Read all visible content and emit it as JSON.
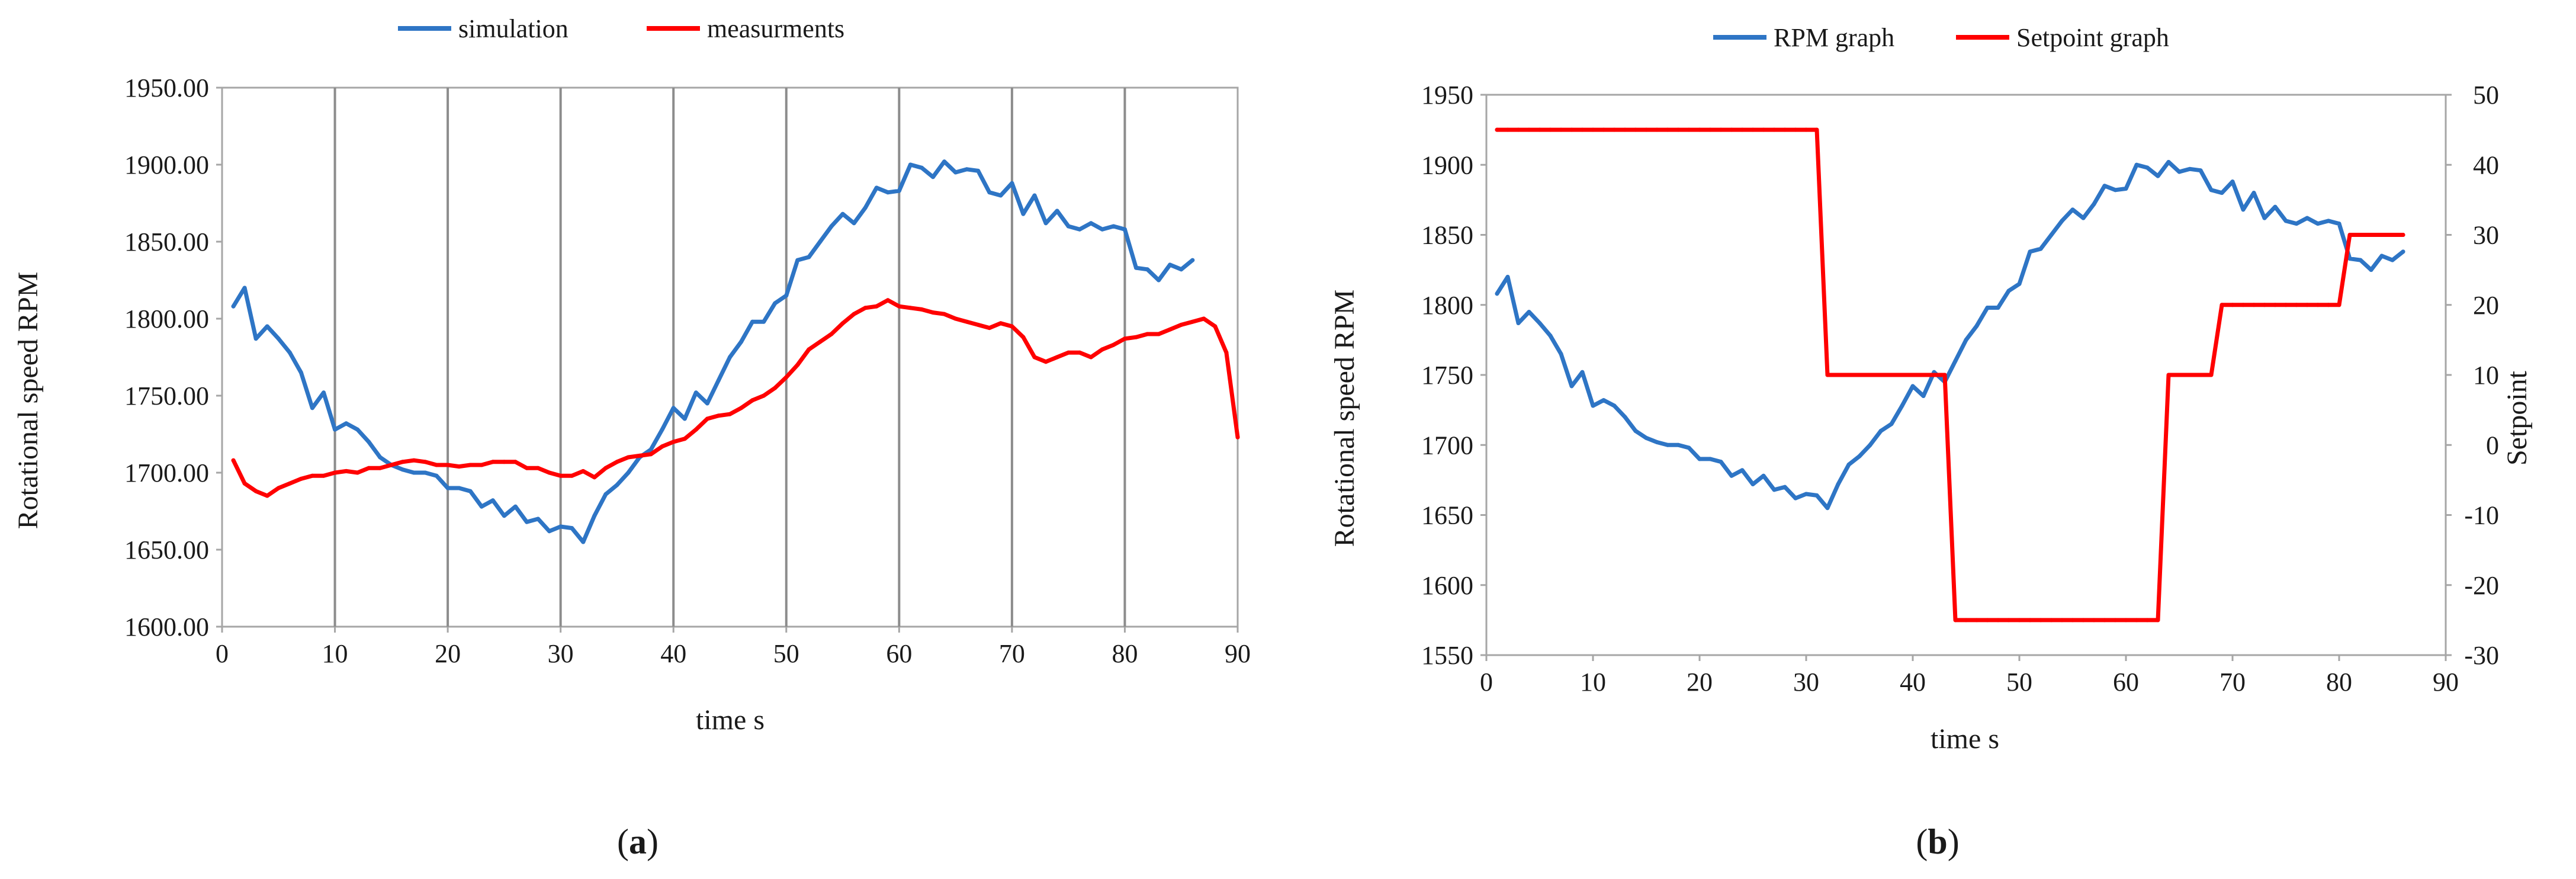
{
  "colors": {
    "simulation": "#2e75c5",
    "measurement": "#ff0000",
    "grid": "#8c8c8c",
    "axis": "#a6a6a6"
  },
  "chart_data": [
    {
      "type": "line",
      "caption_open": "(",
      "caption_letter": "a",
      "caption_close": ")",
      "xlabel": "time s",
      "ylabel": "Rotational speed RPM",
      "xlim": [
        0,
        90
      ],
      "ylim": [
        1600,
        1950
      ],
      "xticks": [
        "0",
        "10",
        "20",
        "30",
        "40",
        "50",
        "60",
        "70",
        "80",
        "90"
      ],
      "yticks": [
        "1600.00",
        "1650.00",
        "1700.00",
        "1750.00",
        "1800.00",
        "1850.00",
        "1900.00",
        "1950.00"
      ],
      "grid": "vertical",
      "legend_position": "top",
      "series": [
        {
          "name": "simulation",
          "color": "#2e75c5",
          "x": [
            1,
            2,
            3,
            4,
            5,
            6,
            7,
            8,
            9,
            10,
            11,
            12,
            13,
            14,
            15,
            16,
            17,
            18,
            19,
            20,
            21,
            22,
            23,
            24,
            25,
            26,
            27,
            28,
            29,
            30,
            31,
            32,
            33,
            34,
            35,
            36,
            37,
            38,
            39,
            40,
            41,
            42,
            43,
            44,
            45,
            46,
            47,
            48,
            49,
            50,
            51,
            52,
            53,
            54,
            55,
            56,
            57,
            58,
            59,
            60,
            61,
            62,
            63,
            64,
            65,
            66,
            67,
            68,
            69,
            70,
            71,
            72,
            73,
            74,
            75,
            76,
            77,
            78,
            79,
            80,
            81,
            82,
            83,
            84,
            85,
            86
          ],
          "y": [
            1808,
            1820,
            1787,
            1795,
            1787,
            1778,
            1765,
            1742,
            1752,
            1728,
            1732,
            1728,
            1720,
            1710,
            1705,
            1702,
            1700,
            1700,
            1698,
            1690,
            1690,
            1688,
            1678,
            1682,
            1672,
            1678,
            1668,
            1670,
            1662,
            1665,
            1664,
            1655,
            1672,
            1686,
            1692,
            1700,
            1710,
            1715,
            1728,
            1742,
            1735,
            1752,
            1745,
            1760,
            1775,
            1785,
            1798,
            1798,
            1810,
            1815,
            1838,
            1840,
            1850,
            1860,
            1868,
            1862,
            1872,
            1885,
            1882,
            1883,
            1900,
            1898,
            1892,
            1902,
            1895,
            1897,
            1896,
            1882,
            1880,
            1888,
            1868,
            1880,
            1862,
            1870,
            1860,
            1858,
            1862,
            1858,
            1860,
            1858,
            1833,
            1832,
            1825,
            1835,
            1832,
            1838
          ]
        },
        {
          "name": "measurments",
          "color": "#ff0000",
          "x": [
            1,
            2,
            3,
            4,
            5,
            6,
            7,
            8,
            9,
            10,
            11,
            12,
            13,
            14,
            15,
            16,
            17,
            18,
            19,
            20,
            21,
            22,
            23,
            24,
            25,
            26,
            27,
            28,
            29,
            30,
            31,
            32,
            33,
            34,
            35,
            36,
            37,
            38,
            39,
            40,
            41,
            42,
            43,
            44,
            45,
            46,
            47,
            48,
            49,
            50,
            51,
            52,
            53,
            54,
            55,
            56,
            57,
            58,
            59,
            60,
            61,
            62,
            63,
            64,
            65,
            66,
            67,
            68,
            69,
            70,
            71,
            72,
            73,
            74,
            75,
            76,
            77,
            78,
            79,
            80,
            81,
            82,
            83,
            84,
            85,
            86,
            87,
            88,
            89,
            90
          ],
          "y": [
            1708,
            1693,
            1688,
            1685,
            1690,
            1693,
            1696,
            1698,
            1698,
            1700,
            1701,
            1700,
            1703,
            1703,
            1705,
            1707,
            1708,
            1707,
            1705,
            1705,
            1704,
            1705,
            1705,
            1707,
            1707,
            1707,
            1703,
            1703,
            1700,
            1698,
            1698,
            1701,
            1697,
            1703,
            1707,
            1710,
            1711,
            1712,
            1717,
            1720,
            1722,
            1728,
            1735,
            1737,
            1738,
            1742,
            1747,
            1750,
            1755,
            1762,
            1770,
            1780,
            1785,
            1790,
            1797,
            1803,
            1807,
            1808,
            1812,
            1808,
            1807,
            1806,
            1804,
            1803,
            1800,
            1798,
            1796,
            1794,
            1797,
            1795,
            1788,
            1775,
            1772,
            1775,
            1778,
            1778,
            1775,
            1780,
            1783,
            1787,
            1788,
            1790,
            1790,
            1793,
            1796,
            1798,
            1800,
            1795,
            1778,
            1723
          ]
        }
      ]
    },
    {
      "type": "line",
      "caption_open": "(",
      "caption_letter": "b",
      "caption_close": ")",
      "xlabel": "time s",
      "ylabel": "Rotational speed RPM",
      "y2label": "Setpoint",
      "xlim": [
        0,
        90
      ],
      "ylim": [
        1550,
        1950
      ],
      "y2lim": [
        -30,
        50
      ],
      "xticks": [
        "0",
        "10",
        "20",
        "30",
        "40",
        "50",
        "60",
        "70",
        "80",
        "90"
      ],
      "yticks": [
        "1550",
        "1600",
        "1650",
        "1700",
        "1750",
        "1800",
        "1850",
        "1900",
        "1950"
      ],
      "y2ticks": [
        "-30",
        "-20",
        "-10",
        "0",
        "10",
        "20",
        "30",
        "40",
        "50"
      ],
      "grid": "none",
      "legend_position": "top",
      "series": [
        {
          "name": "RPM graph",
          "color": "#2e75c5",
          "axis": "left",
          "x": [
            1,
            2,
            3,
            4,
            5,
            6,
            7,
            8,
            9,
            10,
            11,
            12,
            13,
            14,
            15,
            16,
            17,
            18,
            19,
            20,
            21,
            22,
            23,
            24,
            25,
            26,
            27,
            28,
            29,
            30,
            31,
            32,
            33,
            34,
            35,
            36,
            37,
            38,
            39,
            40,
            41,
            42,
            43,
            44,
            45,
            46,
            47,
            48,
            49,
            50,
            51,
            52,
            53,
            54,
            55,
            56,
            57,
            58,
            59,
            60,
            61,
            62,
            63,
            64,
            65,
            66,
            67,
            68,
            69,
            70,
            71,
            72,
            73,
            74,
            75,
            76,
            77,
            78,
            79,
            80,
            81,
            82,
            83,
            84,
            85,
            86
          ],
          "y": [
            1808,
            1820,
            1787,
            1795,
            1787,
            1778,
            1765,
            1742,
            1752,
            1728,
            1732,
            1728,
            1720,
            1710,
            1705,
            1702,
            1700,
            1700,
            1698,
            1690,
            1690,
            1688,
            1678,
            1682,
            1672,
            1678,
            1668,
            1670,
            1662,
            1665,
            1664,
            1655,
            1672,
            1686,
            1692,
            1700,
            1710,
            1715,
            1728,
            1742,
            1735,
            1752,
            1745,
            1760,
            1775,
            1785,
            1798,
            1798,
            1810,
            1815,
            1838,
            1840,
            1850,
            1860,
            1868,
            1862,
            1872,
            1885,
            1882,
            1883,
            1900,
            1898,
            1892,
            1902,
            1895,
            1897,
            1896,
            1882,
            1880,
            1888,
            1868,
            1880,
            1862,
            1870,
            1860,
            1858,
            1862,
            1858,
            1860,
            1858,
            1833,
            1832,
            1825,
            1835,
            1832,
            1838
          ]
        },
        {
          "name": "Setpoint graph",
          "color": "#ff0000",
          "axis": "right",
          "x": [
            1,
            2,
            3,
            4,
            5,
            6,
            7,
            8,
            9,
            10,
            11,
            12,
            13,
            14,
            15,
            16,
            17,
            18,
            19,
            20,
            21,
            22,
            23,
            24,
            25,
            26,
            27,
            28,
            29,
            30,
            31,
            32,
            33,
            34,
            35,
            36,
            37,
            38,
            39,
            40,
            41,
            42,
            43,
            44,
            45,
            46,
            47,
            48,
            49,
            50,
            51,
            52,
            53,
            54,
            55,
            56,
            57,
            58,
            59,
            60,
            61,
            62,
            63,
            64,
            65,
            66,
            67,
            68,
            69,
            70,
            71,
            72,
            73,
            74,
            75,
            76,
            77,
            78,
            79,
            80,
            81,
            82,
            83,
            84,
            85,
            86
          ],
          "y": [
            45,
            45,
            45,
            45,
            45,
            45,
            45,
            45,
            45,
            45,
            45,
            45,
            45,
            45,
            45,
            45,
            45,
            45,
            45,
            45,
            45,
            45,
            45,
            45,
            45,
            45,
            45,
            45,
            45,
            45,
            45,
            10,
            10,
            10,
            10,
            10,
            10,
            10,
            10,
            10,
            10,
            10,
            10,
            -25,
            -25,
            -25,
            -25,
            -25,
            -25,
            -25,
            -25,
            -25,
            -25,
            -25,
            -25,
            -25,
            -25,
            -25,
            -25,
            -25,
            -25,
            -25,
            -25,
            10,
            10,
            10,
            10,
            10,
            20,
            20,
            20,
            20,
            20,
            20,
            20,
            20,
            20,
            20,
            20,
            20,
            30,
            30,
            30,
            30,
            30,
            30
          ]
        }
      ]
    }
  ]
}
